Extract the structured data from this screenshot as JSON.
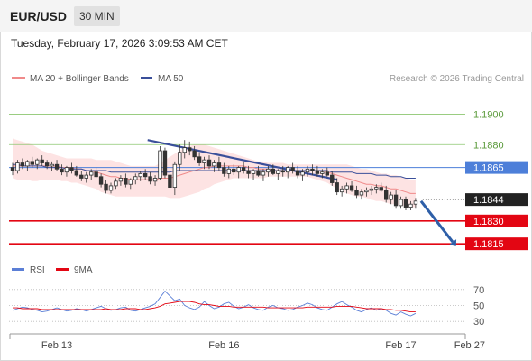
{
  "header": {
    "symbol": "EUR/USD",
    "timeframe": "30 MIN",
    "timestamp": "Tuesday, February 17, 2026 3:09:53 AM CET"
  },
  "colors": {
    "ma20": "#f08a8a",
    "ma50": "#3a4f9a",
    "bollinger_fill": "#fde3e3",
    "resistance_green": "#8cc66f",
    "pivot_blue": "#4d7fd9",
    "support_red": "#e30613",
    "current_price": "#222222",
    "candle": "#333333",
    "rsi": "#5b7fd6",
    "rsi_ma": "#e30613",
    "trend_arrow": "#2e5fa8"
  },
  "chart_data": {
    "type": "candlestick",
    "price_chart": {
      "legend": [
        {
          "name": "MA 20 + Bollinger Bands",
          "color": "#f08a8a"
        },
        {
          "name": "MA 50",
          "color": "#3a4f9a"
        }
      ],
      "credit": "Research © 2026 Trading Central",
      "ylim": [
        1.1808,
        1.1918
      ],
      "levels": [
        {
          "name": "resistance-2",
          "value": 1.19,
          "label": "1.1900",
          "style": "green"
        },
        {
          "name": "resistance-1",
          "value": 1.188,
          "label": "1.1880",
          "style": "green"
        },
        {
          "name": "pivot",
          "value": 1.1865,
          "label": "1.1865",
          "style": "blue"
        },
        {
          "name": "current-price",
          "value": 1.1844,
          "label": "1.1844",
          "style": "dark"
        },
        {
          "name": "support-1",
          "value": 1.183,
          "label": "1.1830",
          "style": "red"
        },
        {
          "name": "support-2",
          "value": 1.1815,
          "label": "1.1815",
          "style": "red"
        }
      ],
      "trendline": {
        "from": [
          0.335,
          1.1883
        ],
        "to": [
          0.805,
          1.1857
        ]
      },
      "ohlc": [
        [
          1.1865,
          1.1868,
          1.186,
          1.1863
        ],
        [
          1.1863,
          1.187,
          1.1861,
          1.1868
        ],
        [
          1.1868,
          1.1871,
          1.1864,
          1.1866
        ],
        [
          1.1866,
          1.187,
          1.1863,
          1.1869
        ],
        [
          1.1869,
          1.1872,
          1.1865,
          1.1867
        ],
        [
          1.1867,
          1.1871,
          1.1864,
          1.187
        ],
        [
          1.187,
          1.1873,
          1.1866,
          1.1868
        ],
        [
          1.1868,
          1.187,
          1.1864,
          1.1866
        ],
        [
          1.1866,
          1.1869,
          1.1863,
          1.1867
        ],
        [
          1.1867,
          1.187,
          1.1863,
          1.1864
        ],
        [
          1.1864,
          1.1867,
          1.186,
          1.1862
        ],
        [
          1.1862,
          1.1866,
          1.1859,
          1.1865
        ],
        [
          1.1865,
          1.1868,
          1.1861,
          1.1863
        ],
        [
          1.1863,
          1.1866,
          1.1859,
          1.186
        ],
        [
          1.186,
          1.1863,
          1.1856,
          1.1858
        ],
        [
          1.1858,
          1.1862,
          1.1855,
          1.186
        ],
        [
          1.186,
          1.1864,
          1.1857,
          1.1862
        ],
        [
          1.1862,
          1.1865,
          1.1858,
          1.1859
        ],
        [
          1.1859,
          1.1861,
          1.1852,
          1.1854
        ],
        [
          1.1854,
          1.1857,
          1.1848,
          1.185
        ],
        [
          1.185,
          1.1855,
          1.1848,
          1.1853
        ],
        [
          1.1853,
          1.1858,
          1.1851,
          1.1856
        ],
        [
          1.1856,
          1.186,
          1.1853,
          1.1858
        ],
        [
          1.1858,
          1.1861,
          1.1852,
          1.1854
        ],
        [
          1.1854,
          1.1858,
          1.1851,
          1.1857
        ],
        [
          1.1857,
          1.1861,
          1.1854,
          1.1859
        ],
        [
          1.1859,
          1.1863,
          1.1856,
          1.1861
        ],
        [
          1.1861,
          1.1864,
          1.1857,
          1.1859
        ],
        [
          1.1859,
          1.1862,
          1.1854,
          1.1856
        ],
        [
          1.1856,
          1.186,
          1.1853,
          1.1858
        ],
        [
          1.1858,
          1.1879,
          1.1857,
          1.1876
        ],
        [
          1.1876,
          1.1878,
          1.1858,
          1.186
        ],
        [
          1.186,
          1.1866,
          1.185,
          1.1852
        ],
        [
          1.1852,
          1.1869,
          1.1847,
          1.1867
        ],
        [
          1.1867,
          1.188,
          1.1863,
          1.1875
        ],
        [
          1.1875,
          1.1883,
          1.1871,
          1.1878
        ],
        [
          1.1878,
          1.1882,
          1.1873,
          1.1876
        ],
        [
          1.1876,
          1.1879,
          1.187,
          1.1872
        ],
        [
          1.1872,
          1.1875,
          1.1866,
          1.1868
        ],
        [
          1.1868,
          1.1872,
          1.1864,
          1.187
        ],
        [
          1.187,
          1.1873,
          1.1864,
          1.1866
        ],
        [
          1.1866,
          1.187,
          1.1862,
          1.1868
        ],
        [
          1.1868,
          1.1872,
          1.1863,
          1.1865
        ],
        [
          1.1865,
          1.1868,
          1.1859,
          1.1861
        ],
        [
          1.1861,
          1.1866,
          1.1858,
          1.1864
        ],
        [
          1.1864,
          1.1867,
          1.186,
          1.1862
        ],
        [
          1.1862,
          1.1866,
          1.1858,
          1.1865
        ],
        [
          1.1865,
          1.1869,
          1.1861,
          1.1863
        ],
        [
          1.1863,
          1.1866,
          1.1858,
          1.1861
        ],
        [
          1.1861,
          1.1864,
          1.1857,
          1.1863
        ],
        [
          1.1863,
          1.1866,
          1.1859,
          1.186
        ],
        [
          1.186,
          1.1864,
          1.1856,
          1.1862
        ],
        [
          1.1862,
          1.1866,
          1.1859,
          1.1864
        ],
        [
          1.1864,
          1.1867,
          1.186,
          1.1861
        ],
        [
          1.1861,
          1.1864,
          1.1857,
          1.1863
        ],
        [
          1.1863,
          1.1866,
          1.1859,
          1.1862
        ],
        [
          1.1862,
          1.1866,
          1.1858,
          1.1865
        ],
        [
          1.1865,
          1.1868,
          1.1861,
          1.1863
        ],
        [
          1.1863,
          1.1866,
          1.1858,
          1.186
        ],
        [
          1.186,
          1.1864,
          1.1856,
          1.1862
        ],
        [
          1.1862,
          1.1866,
          1.1859,
          1.1864
        ],
        [
          1.1864,
          1.1867,
          1.186,
          1.1863
        ],
        [
          1.1863,
          1.1866,
          1.1859,
          1.1861
        ],
        [
          1.1861,
          1.1864,
          1.1858,
          1.1862
        ],
        [
          1.1862,
          1.1865,
          1.1859,
          1.186
        ],
        [
          1.186,
          1.1863,
          1.1853,
          1.1855
        ],
        [
          1.1855,
          1.1858,
          1.1847,
          1.1849
        ],
        [
          1.1849,
          1.1853,
          1.1846,
          1.1851
        ],
        [
          1.1851,
          1.1855,
          1.1848,
          1.1853
        ],
        [
          1.1853,
          1.1856,
          1.1849,
          1.185
        ],
        [
          1.185,
          1.1853,
          1.1845,
          1.1847
        ],
        [
          1.1847,
          1.1851,
          1.1844,
          1.1849
        ],
        [
          1.1849,
          1.1852,
          1.1846,
          1.185
        ],
        [
          1.185,
          1.1853,
          1.1847,
          1.1851
        ],
        [
          1.1851,
          1.1854,
          1.1848,
          1.1852
        ],
        [
          1.1852,
          1.1855,
          1.1849,
          1.185
        ],
        [
          1.185,
          1.1853,
          1.1842,
          1.1844
        ],
        [
          1.1844,
          1.1849,
          1.1841,
          1.1847
        ],
        [
          1.1847,
          1.185,
          1.1838,
          1.184
        ],
        [
          1.184,
          1.1846,
          1.1838,
          1.1844
        ],
        [
          1.1844,
          1.1846,
          1.1837,
          1.1839
        ],
        [
          1.1839,
          1.1843,
          1.1837,
          1.1841
        ],
        [
          1.1841,
          1.1845,
          1.1838,
          1.1843
        ]
      ],
      "ma20": [
        1.1866,
        1.1866,
        1.1866,
        1.1866,
        1.1866,
        1.1866,
        1.1866,
        1.1866,
        1.1866,
        1.1866,
        1.1865,
        1.1865,
        1.1865,
        1.1864,
        1.1864,
        1.1863,
        1.1863,
        1.1862,
        1.1861,
        1.186,
        1.1859,
        1.1859,
        1.1858,
        1.1858,
        1.1857,
        1.1857,
        1.1857,
        1.1857,
        1.1857,
        1.1857,
        1.1858,
        1.1858,
        1.1858,
        1.1859,
        1.186,
        1.1861,
        1.1862,
        1.1863,
        1.1864,
        1.1865,
        1.1865,
        1.1866,
        1.1866,
        1.1866,
        1.1866,
        1.1866,
        1.1866,
        1.1866,
        1.1865,
        1.1865,
        1.1864,
        1.1864,
        1.1864,
        1.1863,
        1.1863,
        1.1863,
        1.1863,
        1.1863,
        1.1863,
        1.1863,
        1.1863,
        1.1863,
        1.1863,
        1.1863,
        1.1862,
        1.1861,
        1.186,
        1.1859,
        1.1858,
        1.1857,
        1.1856,
        1.1855,
        1.1854,
        1.1854,
        1.1853,
        1.1853,
        1.1852,
        1.1851,
        1.1851,
        1.185,
        1.1849,
        1.1848,
        1.1848
      ],
      "bb_upper": [
        1.1884,
        1.1883,
        1.1882,
        1.1881,
        1.188,
        1.1878,
        1.1876,
        1.1875,
        1.1874,
        1.1873,
        1.1872,
        1.1871,
        1.1871,
        1.1871,
        1.1871,
        1.1871,
        1.1871,
        1.187,
        1.187,
        1.187,
        1.187,
        1.1869,
        1.1868,
        1.1867,
        1.1866,
        1.1866,
        1.1866,
        1.1866,
        1.1866,
        1.1866,
        1.1868,
        1.187,
        1.1872,
        1.1874,
        1.1876,
        1.1878,
        1.1879,
        1.188,
        1.188,
        1.188,
        1.1879,
        1.1878,
        1.1877,
        1.1876,
        1.1875,
        1.1874,
        1.1873,
        1.1872,
        1.1871,
        1.187,
        1.1869,
        1.1869,
        1.1868,
        1.1868,
        1.1868,
        1.1868,
        1.1867,
        1.1867,
        1.1867,
        1.1867,
        1.1867,
        1.1867,
        1.1867,
        1.1867,
        1.1867,
        1.1867,
        1.1867,
        1.1867,
        1.1867,
        1.1866,
        1.1865,
        1.1864,
        1.1864,
        1.1863,
        1.1862,
        1.1861,
        1.1861,
        1.186,
        1.186,
        1.1859,
        1.1858,
        1.1857,
        1.1857
      ],
      "bb_lower": [
        1.1858,
        1.1857,
        1.1857,
        1.1857,
        1.1856,
        1.1856,
        1.1857,
        1.1857,
        1.1857,
        1.1857,
        1.1856,
        1.1856,
        1.1855,
        1.1855,
        1.1854,
        1.1853,
        1.1852,
        1.1851,
        1.1849,
        1.1848,
        1.1847,
        1.1846,
        1.1846,
        1.1846,
        1.1846,
        1.1846,
        1.1846,
        1.1846,
        1.1846,
        1.1846,
        1.1846,
        1.1846,
        1.1845,
        1.1845,
        1.1845,
        1.1846,
        1.1847,
        1.1848,
        1.1849,
        1.1851,
        1.1852,
        1.1854,
        1.1855,
        1.1856,
        1.1857,
        1.1858,
        1.1858,
        1.1858,
        1.1858,
        1.1858,
        1.1858,
        1.1858,
        1.1859,
        1.1859,
        1.1859,
        1.1859,
        1.1859,
        1.1859,
        1.1859,
        1.1859,
        1.1859,
        1.1858,
        1.1857,
        1.1856,
        1.1855,
        1.1853,
        1.1851,
        1.1849,
        1.1848,
        1.1847,
        1.1846,
        1.1846,
        1.1845,
        1.1844,
        1.1843,
        1.1843,
        1.1842,
        1.1841,
        1.1841,
        1.184,
        1.184,
        1.1839,
        1.1839
      ],
      "ma50": [
        1.1867,
        1.1867,
        1.1866,
        1.1866,
        1.1866,
        1.1866,
        1.1866,
        1.1865,
        1.1865,
        1.1865,
        1.1865,
        1.1864,
        1.1864,
        1.1864,
        1.1864,
        1.1863,
        1.1863,
        1.1863,
        1.1863,
        1.1863,
        1.1862,
        1.1862,
        1.1862,
        1.1862,
        1.1862,
        1.1862,
        1.1862,
        1.1862,
        1.1862,
        1.1862,
        1.1862,
        1.1862,
        1.1862,
        1.1863,
        1.1863,
        1.1863,
        1.1863,
        1.1863,
        1.1863,
        1.1863,
        1.1863,
        1.1863,
        1.1863,
        1.1863,
        1.1863,
        1.1863,
        1.1863,
        1.1863,
        1.1863,
        1.1863,
        1.1863,
        1.1863,
        1.1863,
        1.1863,
        1.1863,
        1.1863,
        1.1863,
        1.1863,
        1.1863,
        1.1863,
        1.1863,
        1.1863,
        1.1863,
        1.1863,
        1.1863,
        1.1862,
        1.1862,
        1.1862,
        1.1862,
        1.1862,
        1.1861,
        1.1861,
        1.1861,
        1.1861,
        1.186,
        1.186,
        1.186,
        1.1859,
        1.1859,
        1.1859,
        1.1858,
        1.1858,
        1.1858
      ],
      "projection": {
        "from": [
          1.1843,
          0
        ],
        "to": [
          1.1815,
          8
        ]
      }
    },
    "rsi_chart": {
      "legend": [
        {
          "name": "RSI",
          "color": "#5b7fd6"
        },
        {
          "name": "9MA",
          "color": "#e30613"
        }
      ],
      "ylim": [
        20,
        80
      ],
      "ticks": [
        {
          "value": 70,
          "label": "70"
        },
        {
          "value": 50,
          "label": "50"
        },
        {
          "value": 30,
          "label": "30"
        }
      ],
      "rsi": [
        44,
        46,
        48,
        47,
        45,
        44,
        42,
        43,
        45,
        47,
        45,
        43,
        44,
        46,
        45,
        43,
        45,
        47,
        49,
        46,
        44,
        45,
        47,
        48,
        44,
        43,
        45,
        47,
        49,
        52,
        60,
        68,
        62,
        56,
        58,
        50,
        47,
        45,
        48,
        55,
        50,
        46,
        48,
        52,
        54,
        49,
        46,
        48,
        51,
        47,
        45,
        44,
        48,
        50,
        47,
        46,
        44,
        45,
        48,
        50,
        53,
        51,
        47,
        45,
        44,
        48,
        52,
        55,
        51,
        48,
        44,
        42,
        45,
        47,
        44,
        46,
        44,
        40,
        38,
        42,
        39,
        37,
        40
      ],
      "rsi_ma": [
        47,
        47,
        46,
        46,
        46,
        46,
        45,
        45,
        45,
        45,
        45,
        45,
        45,
        45,
        45,
        45,
        45,
        45,
        45,
        46,
        45,
        45,
        45,
        46,
        46,
        46,
        45,
        45,
        46,
        47,
        49,
        52,
        53,
        54,
        55,
        55,
        55,
        54,
        52,
        51,
        51,
        50,
        49,
        49,
        49,
        48,
        48,
        48,
        48,
        48,
        48,
        48,
        47,
        47,
        47,
        47,
        47,
        47,
        47,
        47,
        48,
        48,
        48,
        48,
        48,
        48,
        49,
        49,
        49,
        49,
        48,
        47,
        46,
        46,
        46,
        46,
        45,
        45,
        44,
        44,
        43,
        42,
        42
      ]
    },
    "x_axis": {
      "labels": [
        {
          "label": "Feb 13",
          "index": 9
        },
        {
          "label": "Feb 16",
          "index": 43
        },
        {
          "label": "Feb 17",
          "index": 79
        },
        {
          "label": "Feb 27",
          "index": 93
        }
      ]
    }
  }
}
